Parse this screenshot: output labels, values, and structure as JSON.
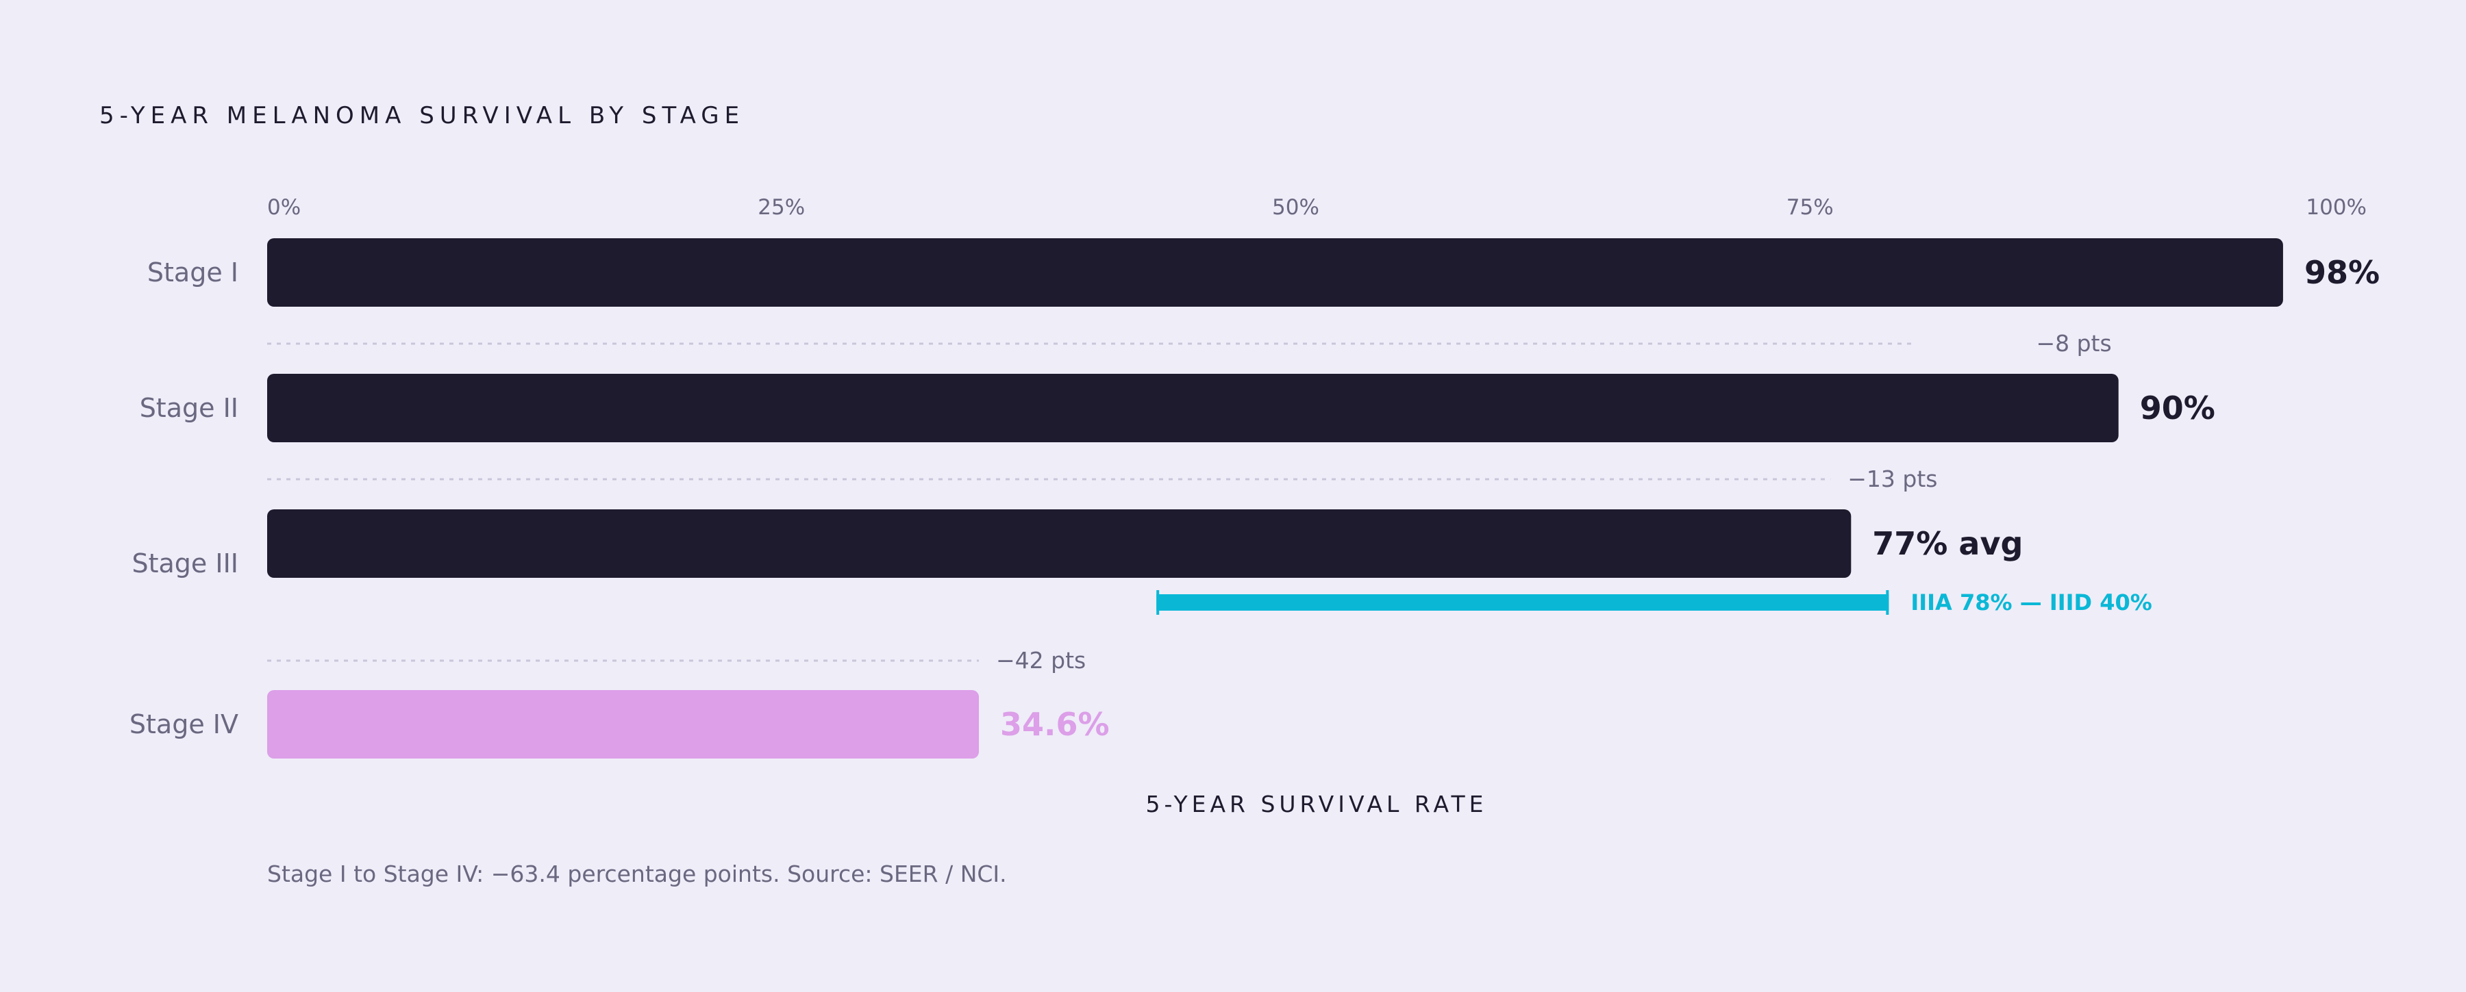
{
  "colors": {
    "background": "#efedf8",
    "bar_dark": "#1e1b2e",
    "bar_highlight": "#dc9fe8",
    "range": "#0ab8d6",
    "muted_text": "#6a6880",
    "dotted_line": "#c9c6da"
  },
  "chart_data": {
    "type": "bar",
    "orientation": "horizontal",
    "title": "5-YEAR MELANOMA SURVIVAL BY STAGE",
    "xlabel": "5-YEAR SURVIVAL RATE",
    "ylabel": "",
    "xlim": [
      0,
      100
    ],
    "ticks": [
      {
        "value": 0,
        "label": "0%"
      },
      {
        "value": 25,
        "label": "25%"
      },
      {
        "value": 50,
        "label": "50%"
      },
      {
        "value": 75,
        "label": "75%"
      },
      {
        "value": 100,
        "label": "100%"
      }
    ],
    "categories": [
      "Stage I",
      "Stage II",
      "Stage III",
      "Stage IV"
    ],
    "values": [
      98,
      90,
      77,
      34.6
    ],
    "value_labels": [
      "98%",
      "90%",
      "77% avg",
      "34.6%"
    ],
    "highlight_index": 3,
    "deltas": [
      {
        "between": [
          0,
          1
        ],
        "label": "−8 pts",
        "end_value": 80
      },
      {
        "between": [
          1,
          2
        ],
        "label": "−13 pts",
        "end_value": 76
      },
      {
        "between": [
          2,
          3
        ],
        "label": "−42 pts",
        "end_value": 34.6
      }
    ],
    "range": {
      "category_index": 2,
      "low": 40,
      "high": 78,
      "label": "IIIA 78% — IIID 40%"
    },
    "grid": false,
    "legend": "none",
    "note": "Stage I to Stage IV: −63.4 percentage points. Source: SEER / NCI."
  }
}
